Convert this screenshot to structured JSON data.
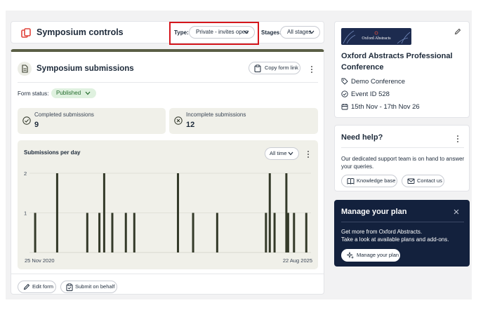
{
  "header": {
    "title": "Symposium controls",
    "type_label": "Type:",
    "type_value": "Private - invites open",
    "stages_label": "Stages:",
    "stages_value": "All stages"
  },
  "submissions": {
    "title": "Symposium submissions",
    "copy_form_link": "Copy form link",
    "form_status_label": "Form status:",
    "form_status_value": "Published",
    "completed_label": "Completed submissions",
    "completed_count": "9",
    "incomplete_label": "Incomplete submissions",
    "incomplete_count": "12",
    "edit_form": "Edit form",
    "submit_on_behalf": "Submit on behalf"
  },
  "chart_data": {
    "type": "bar",
    "title": "Submissions per day",
    "range_selector": "All time",
    "x_start_label": "25 Nov 2020",
    "x_end_label": "22 Aug 2025",
    "x_start": "2020-11-25",
    "x_end": "2025-08-22",
    "ylim": [
      0,
      2
    ],
    "y_ticks": [
      "1",
      "2"
    ],
    "grid": true,
    "bars": [
      {
        "date": "2020-12-13",
        "value": 1
      },
      {
        "date": "2021-04-30",
        "value": 2
      },
      {
        "date": "2021-11-05",
        "value": 1
      },
      {
        "date": "2022-01-20",
        "value": 1
      },
      {
        "date": "2022-02-19",
        "value": 2
      },
      {
        "date": "2022-04-11",
        "value": 1
      },
      {
        "date": "2022-07-05",
        "value": 1
      },
      {
        "date": "2022-08-27",
        "value": 1
      },
      {
        "date": "2023-05-28",
        "value": 2
      },
      {
        "date": "2023-08-31",
        "value": 1
      },
      {
        "date": "2024-01-29",
        "value": 1
      },
      {
        "date": "2024-11-30",
        "value": 1
      },
      {
        "date": "2024-12-24",
        "value": 2
      },
      {
        "date": "2025-01-23",
        "value": 1
      },
      {
        "date": "2025-04-07",
        "value": 2
      },
      {
        "date": "2025-04-18",
        "value": 1
      },
      {
        "date": "2025-05-25",
        "value": 1
      },
      {
        "date": "2025-08-10",
        "value": 1
      }
    ]
  },
  "event": {
    "logo_text": "Oxford Abstracts",
    "name": "Oxford Abstracts Professional Conference",
    "tag": "Demo Conference",
    "event_id": "Event ID 528",
    "dates": "15th Nov - 17th Nov 26"
  },
  "help": {
    "title": "Need help?",
    "text": "Our dedicated support team is on hand to answer your queries.",
    "knowledge_base": "Knowledge base",
    "contact_us": "Contact us"
  },
  "plan": {
    "title": "Manage your plan",
    "line1": "Get more from Oxford Abstracts.",
    "line2": "Take a look at available plans and add-ons.",
    "button": "Manage your plan"
  }
}
